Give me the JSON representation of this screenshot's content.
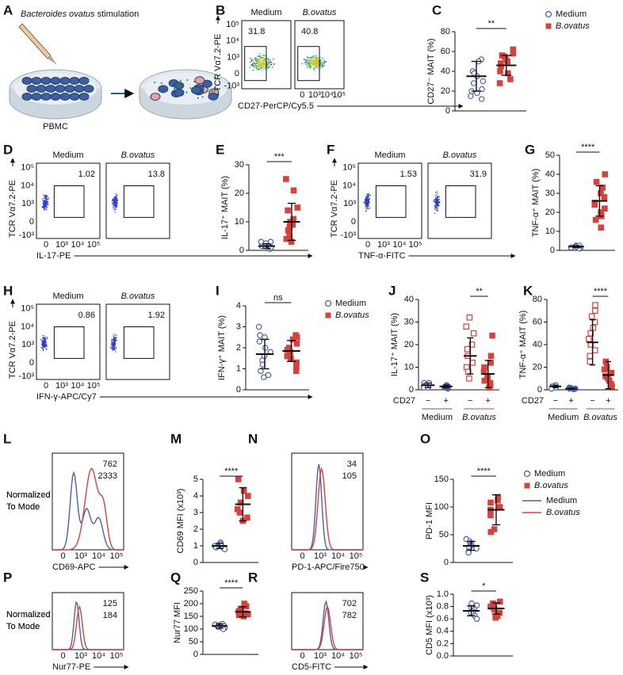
{
  "conditions": [
    {
      "name": "Medium",
      "color": "#4a62ad",
      "italic": false
    },
    {
      "name": "B.ovatus",
      "color": "#d9413d",
      "italic": true
    }
  ],
  "flow_ticks": {
    "y": [
      "10⁵",
      "10⁴",
      "10³",
      "0",
      "-10³"
    ],
    "x": [
      "0",
      "10³",
      "10⁴",
      "10⁵"
    ]
  },
  "A": {
    "letter": "A",
    "title_italic": "Bacteroides ovatus",
    "title_rest": " stimulation",
    "label": "PBMC"
  },
  "B": {
    "letter": "B",
    "gate_values": [
      31.8,
      40.8
    ],
    "y_label": "TCR Vα7.2-PE",
    "x_label": "CD27-PerCP/Cy5.5"
  },
  "D": {
    "letter": "D",
    "gate_values": [
      1.02,
      13.8
    ],
    "y_label": "TCR Vα7.2-PE",
    "x_label": "IL-17-PE"
  },
  "F": {
    "letter": "F",
    "gate_values": [
      1.53,
      31.9
    ],
    "y_label": "TCR Vα7.2-PE",
    "x_label": "TNF-α-FITC"
  },
  "H": {
    "letter": "H",
    "gate_values": [
      0.86,
      1.92
    ],
    "y_label": "TCR Vα7.2-PE",
    "x_label": "IFN-γ-APC/Cy7"
  },
  "C": {
    "letter": "C",
    "y_label": "CD27⁻ MAIT (%)",
    "ylim": [
      0,
      80
    ],
    "yticks": [
      0,
      20,
      40,
      60,
      80
    ],
    "significance": "**",
    "groups": [
      {
        "condition": 0,
        "marker": "circle-open",
        "values": [
          52,
          50,
          40,
          38,
          35,
          30,
          28,
          22,
          20,
          18,
          15,
          12
        ],
        "mean": 35,
        "sd": 15
      },
      {
        "condition": 1,
        "marker": "square-filled",
        "values": [
          62,
          58,
          56,
          55,
          52,
          50,
          48,
          45,
          40,
          38,
          32,
          28
        ],
        "mean": 46,
        "sd": 10
      }
    ]
  },
  "E": {
    "letter": "E",
    "y_label": "IL-17⁺ MAIT (%)",
    "ylim": [
      0,
      30
    ],
    "yticks": [
      0,
      10,
      20,
      30
    ],
    "significance": "***",
    "groups": [
      {
        "condition": 0,
        "marker": "circle-open",
        "values": [
          0.5,
          1,
          1,
          1.5,
          1.5,
          2,
          2,
          2.5,
          3,
          3
        ],
        "mean": 1.5,
        "sd": 0.8
      },
      {
        "condition": 1,
        "marker": "square-filled",
        "values": [
          25,
          21,
          15,
          14,
          11,
          10,
          9,
          8,
          7,
          5,
          4,
          3
        ],
        "mean": 10,
        "sd": 6.5
      }
    ]
  },
  "G": {
    "letter": "G",
    "y_label": "TNF-α⁺ MAIT (%)",
    "ylim": [
      0,
      50
    ],
    "yticks": [
      0,
      10,
      20,
      30,
      40,
      50
    ],
    "significance": "****",
    "groups": [
      {
        "condition": 0,
        "marker": "circle-open",
        "values": [
          1,
          1.5,
          2,
          2,
          2.5,
          2,
          1.5,
          1,
          2,
          2.5
        ],
        "mean": 2,
        "sd": 0.5
      },
      {
        "condition": 1,
        "marker": "square-filled",
        "values": [
          40,
          36,
          33,
          30,
          28,
          25,
          24,
          22,
          20,
          18,
          16,
          12
        ],
        "mean": 26,
        "sd": 8
      }
    ]
  },
  "I": {
    "letter": "I",
    "y_label": "IFN-γ⁺ MAIT (%)",
    "ylim": [
      0,
      4
    ],
    "yticks": [
      0,
      1,
      2,
      3,
      4
    ],
    "significance": "ns",
    "groups": [
      {
        "condition": 0,
        "marker": "circle-open",
        "values": [
          3,
          2.6,
          2.5,
          2.3,
          2,
          1.8,
          1.6,
          1.4,
          1.2,
          0.9,
          0.7,
          0.6
        ],
        "mean": 1.7,
        "sd": 0.7
      },
      {
        "condition": 1,
        "marker": "square-filled",
        "values": [
          2.6,
          2.5,
          2.4,
          2.2,
          2,
          1.9,
          1.8,
          1.6,
          1.5,
          1.3,
          1.1,
          0.9
        ],
        "mean": 1.85,
        "sd": 0.5
      }
    ]
  },
  "J": {
    "letter": "J",
    "y_label": "IL-17⁺ MAIT (%)",
    "ylim": [
      0,
      40
    ],
    "yticks": [
      0,
      10,
      20,
      30,
      40
    ],
    "significance": "**",
    "cd27_label": "CD27",
    "cd27": [
      "−",
      "+",
      "−",
      "+"
    ],
    "groups": [
      {
        "condition": 0,
        "marker": "circle-open",
        "values": [
          3,
          2,
          2,
          1.5,
          1,
          2.5,
          3,
          1
        ],
        "mean": 2,
        "sd": 1
      },
      {
        "condition": 0,
        "marker": "circle-filled",
        "values": [
          2,
          1.5,
          1,
          1,
          0.5,
          2,
          1.5
        ],
        "mean": 1.5,
        "sd": 0.6
      },
      {
        "condition": 1,
        "marker": "square-open",
        "values": [
          32,
          28,
          25,
          20,
          18,
          15,
          12,
          10,
          8,
          5
        ],
        "mean": 15,
        "sd": 8
      },
      {
        "condition": 1,
        "marker": "square-filled",
        "values": [
          24,
          15,
          12,
          10,
          8,
          6,
          5,
          4,
          3,
          2,
          1
        ],
        "mean": 7,
        "sd": 6
      }
    ]
  },
  "K": {
    "letter": "K",
    "y_label": "TNF-α⁺ MAIT (%)",
    "ylim": [
      0,
      80
    ],
    "yticks": [
      0,
      20,
      40,
      60,
      80
    ],
    "significance": "****",
    "cd27_label": "CD27",
    "cd27": [
      "−",
      "+",
      "−",
      "+"
    ],
    "groups": [
      {
        "condition": 0,
        "marker": "circle-open",
        "values": [
          4,
          3,
          2,
          2,
          3,
          1
        ],
        "mean": 3,
        "sd": 1
      },
      {
        "condition": 0,
        "marker": "circle-filled",
        "values": [
          2,
          1,
          1,
          0.5,
          1.5
        ],
        "mean": 1,
        "sd": 0.5
      },
      {
        "condition": 1,
        "marker": "square-open",
        "values": [
          75,
          70,
          65,
          60,
          55,
          50,
          45,
          40,
          35,
          30,
          25
        ],
        "mean": 42,
        "sd": 20
      },
      {
        "condition": 1,
        "marker": "square-filled",
        "values": [
          25,
          20,
          18,
          15,
          12,
          10,
          8,
          5,
          3
        ],
        "mean": 13,
        "sd": 12
      }
    ]
  },
  "L": {
    "letter": "L",
    "values": [
      762,
      2333
    ],
    "y_label": [
      "Normalized",
      "To Mode"
    ],
    "x_label": "CD69-APC"
  },
  "N": {
    "letter": "N",
    "values": [
      34,
      105
    ],
    "y_label": [
      "Normalized",
      "To Mode"
    ],
    "x_label": "PD-1-APC/Fire750"
  },
  "P": {
    "letter": "P",
    "values": [
      125,
      184
    ],
    "y_label": [
      "Normalized",
      "To Mode"
    ],
    "x_label": "Nur77-PE"
  },
  "R": {
    "letter": "R",
    "values": [
      702,
      782
    ],
    "y_label": [
      "Normalized",
      "To Mode"
    ],
    "x_label": "CD5-FITC"
  },
  "M": {
    "letter": "M",
    "y_label": "CD69 MFI (x10³)",
    "ylim": [
      0,
      5
    ],
    "yticks": [
      0,
      1,
      2,
      3,
      4,
      5
    ],
    "significance": "****",
    "groups": [
      {
        "condition": 0,
        "marker": "circle-open",
        "values": [
          1.2,
          1.1,
          1,
          1,
          0.9,
          0.9,
          0.8,
          1.1
        ],
        "mean": 1,
        "sd": 0.15
      },
      {
        "condition": 1,
        "marker": "square-filled",
        "values": [
          5,
          4.3,
          4,
          3.6,
          3.2,
          3,
          2.7,
          2.5
        ],
        "mean": 3.5,
        "sd": 1
      }
    ]
  },
  "O": {
    "letter": "O",
    "y_label": "PD-1 MFI",
    "ylim": [
      0,
      150
    ],
    "yticks": [
      0,
      50,
      100,
      150
    ],
    "significance": "****",
    "groups": [
      {
        "condition": 0,
        "marker": "circle-open",
        "values": [
          42,
          38,
          35,
          32,
          30,
          28,
          25,
          20,
          18
        ],
        "mean": 30,
        "sd": 8
      },
      {
        "condition": 1,
        "marker": "square-filled",
        "values": [
          118,
          112,
          108,
          100,
          95,
          85,
          60,
          55
        ],
        "mean": 95,
        "sd": 27
      }
    ]
  },
  "Q": {
    "letter": "Q",
    "y_label": "Nur77 MFI",
    "ylim": [
      0,
      250
    ],
    "yticks": [
      0,
      50,
      100,
      150,
      200,
      250
    ],
    "significance": "****",
    "groups": [
      {
        "condition": 0,
        "marker": "circle-open",
        "values": [
          120,
          118,
          115,
          112,
          110,
          108,
          105,
          100
        ],
        "mean": 112,
        "sd": 8
      },
      {
        "condition": 1,
        "marker": "square-filled",
        "values": [
          200,
          190,
          180,
          170,
          162,
          158,
          155,
          150
        ],
        "mean": 168,
        "sd": 20
      }
    ]
  },
  "S": {
    "letter": "S",
    "y_label": "CD5 MFI (x10³)",
    "ylim": [
      0,
      1
    ],
    "yticks": [
      {
        "value": 0,
        "label": "0.0"
      },
      0.2,
      0.4,
      0.6,
      0.8,
      {
        "value": 1,
        "label": "1.0"
      }
    ],
    "significance": "*",
    "groups": [
      {
        "condition": 0,
        "marker": "circle-open",
        "values": [
          0.85,
          0.82,
          0.78,
          0.75,
          0.72,
          0.7,
          0.65,
          0.6
        ],
        "mean": 0.73,
        "sd": 0.08
      },
      {
        "condition": 1,
        "marker": "square-filled",
        "values": [
          0.88,
          0.85,
          0.8,
          0.78,
          0.75,
          0.7,
          0.65,
          0.62
        ],
        "mean": 0.77,
        "sd": 0.09
      }
    ]
  }
}
